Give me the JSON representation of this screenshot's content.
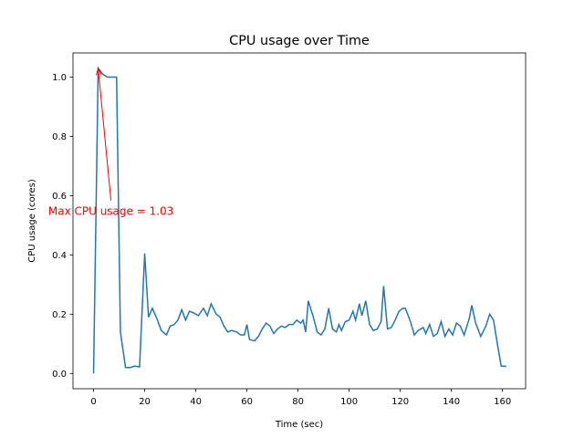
{
  "chart_data": {
    "type": "line",
    "title": "CPU usage over Time",
    "xlabel": "Time (sec)",
    "ylabel": "CPU usage (cores)",
    "x": [
      0,
      1.8,
      3.6,
      5.4,
      7.2,
      9,
      10.5,
      12.5,
      14.5,
      16,
      18,
      20,
      21.5,
      23,
      25,
      26.5,
      28.5,
      30,
      31.5,
      33,
      34.5,
      36,
      37.5,
      39,
      41,
      43,
      44.5,
      46,
      48,
      49.5,
      51,
      52.5,
      54,
      56,
      57.5,
      59,
      60,
      61,
      63,
      64.5,
      66,
      67.5,
      69,
      70.5,
      72,
      73.5,
      75,
      76.5,
      78,
      79.5,
      81,
      82,
      83,
      84,
      86,
      87.5,
      89,
      90.5,
      92,
      93.5,
      95,
      96,
      97,
      98.5,
      100,
      101.5,
      102.5,
      104,
      105,
      106.5,
      108,
      109.5,
      111,
      112.5,
      113.5,
      115,
      116.5,
      118,
      119.5,
      121,
      122,
      124,
      125.5,
      127,
      129,
      130,
      131.5,
      133,
      134.5,
      136,
      137.5,
      139,
      140.5,
      142,
      143.5,
      145,
      147,
      148,
      149.5,
      151.5,
      153.5,
      155,
      156.5,
      158,
      159.5,
      161.5
    ],
    "series": [
      {
        "name": "CPU usage",
        "color": "#1f77b4",
        "values": [
          0,
          1.03,
          1.01,
          1.0,
          1.0,
          1.0,
          0.14,
          0.02,
          0.02,
          0.025,
          0.022,
          0.405,
          0.19,
          0.22,
          0.18,
          0.145,
          0.13,
          0.16,
          0.165,
          0.18,
          0.215,
          0.18,
          0.21,
          0.205,
          0.195,
          0.22,
          0.195,
          0.235,
          0.2,
          0.19,
          0.16,
          0.14,
          0.145,
          0.14,
          0.13,
          0.13,
          0.165,
          0.115,
          0.11,
          0.125,
          0.15,
          0.17,
          0.16,
          0.135,
          0.15,
          0.16,
          0.155,
          0.165,
          0.165,
          0.18,
          0.17,
          0.18,
          0.14,
          0.245,
          0.19,
          0.14,
          0.13,
          0.15,
          0.22,
          0.15,
          0.14,
          0.165,
          0.145,
          0.175,
          0.18,
          0.21,
          0.18,
          0.235,
          0.195,
          0.245,
          0.165,
          0.145,
          0.15,
          0.175,
          0.295,
          0.15,
          0.155,
          0.18,
          0.21,
          0.22,
          0.22,
          0.175,
          0.13,
          0.145,
          0.155,
          0.135,
          0.165,
          0.125,
          0.135,
          0.175,
          0.125,
          0.15,
          0.13,
          0.17,
          0.16,
          0.13,
          0.185,
          0.23,
          0.17,
          0.125,
          0.16,
          0.2,
          0.18,
          0.1,
          0.025,
          0.024
        ]
      }
    ],
    "xlim": [
      -8.05,
      169.05
    ],
    "xticks": [
      0,
      20,
      40,
      60,
      80,
      100,
      120,
      140,
      160
    ],
    "ylim": [
      -0.0515,
      1.0815
    ],
    "yticks": [
      {
        "value": 0,
        "label": "0.0"
      },
      0.2,
      0.4,
      0.6,
      0.8,
      {
        "value": 1,
        "label": "1.0"
      }
    ],
    "annotation": {
      "text": "Max CPU usage = 1.03",
      "x": 1.8,
      "y": 1.03,
      "color": "red"
    }
  }
}
